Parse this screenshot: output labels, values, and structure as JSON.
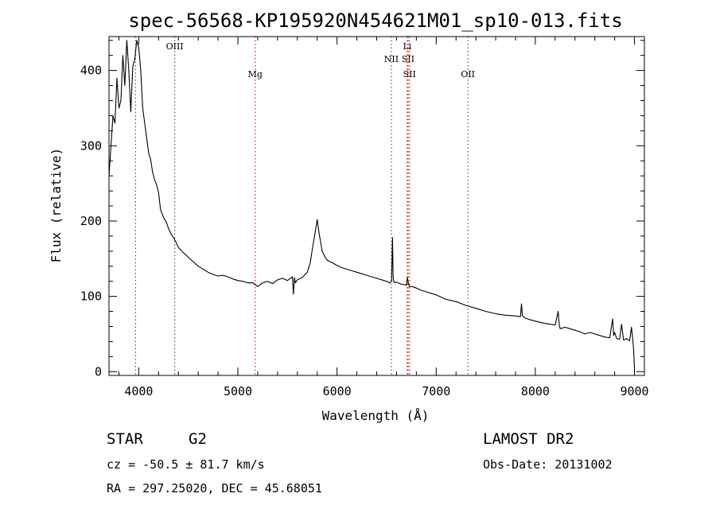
{
  "chart_data": {
    "type": "line",
    "title": "spec-56568-KP195920N454621M01_sp10-013.fits",
    "xlabel": "Wavelength (Å)",
    "ylabel": "Flux (relative)",
    "xlim": [
      3700,
      9100
    ],
    "ylim": [
      -5,
      445
    ],
    "x_ticks": [
      4000,
      5000,
      6000,
      7000,
      8000,
      9000
    ],
    "y_ticks": [
      0,
      100,
      200,
      300,
      400
    ],
    "grid": false,
    "series": [
      {
        "x": [
          3700,
          3720,
          3740,
          3760,
          3780,
          3800,
          3820,
          3840,
          3860,
          3880,
          3900,
          3920,
          3940,
          3960,
          3980,
          4000,
          4020,
          4040,
          4060,
          4080,
          4100,
          4120,
          4140,
          4160,
          4180,
          4200,
          4220,
          4250,
          4280,
          4300,
          4330,
          4360,
          4400,
          4450,
          4500,
          4550,
          4600,
          4650,
          4700,
          4750,
          4800,
          4850,
          4900,
          4950,
          5000,
          5050,
          5100,
          5150,
          5200,
          5250,
          5300,
          5350,
          5400,
          5450,
          5500,
          5550,
          5560,
          5570,
          5580,
          5600,
          5650,
          5700,
          5730,
          5760,
          5780,
          5800,
          5820,
          5850,
          5880,
          5900,
          5950,
          6000,
          6050,
          6100,
          6150,
          6200,
          6250,
          6300,
          6350,
          6400,
          6450,
          6500,
          6530,
          6550,
          6560,
          6565,
          6570,
          6580,
          6600,
          6650,
          6700,
          6710,
          6720,
          6730,
          6760,
          6800,
          6850,
          6900,
          6950,
          7000,
          7100,
          7200,
          7300,
          7400,
          7500,
          7600,
          7700,
          7800,
          7850,
          7860,
          7870,
          7900,
          8000,
          8100,
          8200,
          8230,
          8240,
          8250,
          8300,
          8350,
          8400,
          8450,
          8500,
          8550,
          8600,
          8650,
          8700,
          8750,
          8780,
          8790,
          8800,
          8820,
          8850,
          8870,
          8890,
          8920,
          8950,
          8970,
          8990,
          9000
        ],
        "y": [
          260,
          300,
          340,
          330,
          390,
          350,
          360,
          420,
          380,
          440,
          400,
          345,
          405,
          415,
          440,
          430,
          400,
          350,
          330,
          310,
          290,
          282,
          265,
          255,
          248,
          238,
          215,
          205,
          198,
          190,
          182,
          176,
          165,
          158,
          152,
          146,
          140,
          136,
          132,
          129,
          127,
          128,
          126,
          123,
          121,
          120,
          118,
          118,
          113,
          118,
          120,
          117,
          122,
          124,
          121,
          126,
          103,
          125,
          118,
          122,
          125,
          132,
          145,
          170,
          185,
          202,
          183,
          160,
          152,
          148,
          145,
          141,
          138,
          136,
          134,
          132,
          130,
          128,
          126,
          124,
          122,
          120,
          118,
          120,
          178,
          128,
          121,
          118,
          119,
          116,
          115,
          125,
          117,
          113,
          113,
          111,
          108,
          106,
          104,
          102,
          96,
          93,
          88,
          84,
          80,
          77,
          75,
          74,
          73,
          90,
          74,
          71,
          67,
          64,
          62,
          80,
          64,
          57,
          59,
          57,
          55,
          53,
          50,
          52,
          50,
          48,
          46,
          45,
          70,
          48,
          52,
          44,
          43,
          63,
          42,
          44,
          41,
          59,
          32,
          5
        ]
      }
    ],
    "annotations": [
      {
        "label": "OIII",
        "x": 4363,
        "label_row": 1,
        "color": "#555555"
      },
      {
        "label": "",
        "x": 3968,
        "label_row": 1,
        "color": "#555555"
      },
      {
        "label": "Mg",
        "x": 5175,
        "label_row": 3,
        "color": "#cc2222"
      },
      {
        "label": "NII",
        "x": 6548,
        "label_row": 2,
        "color": "#555555"
      },
      {
        "label": "Li",
        "x": 6708,
        "label_row": 1,
        "color": "#cc2222"
      },
      {
        "label": "SII",
        "x": 6717,
        "label_row": 2,
        "color": "#cc2222"
      },
      {
        "label": "SII",
        "x": 6731,
        "label_row": 3,
        "color": "#cc2222"
      },
      {
        "label": "OII",
        "x": 7320,
        "label_row": 3,
        "color": "#555555"
      }
    ]
  },
  "info": {
    "class_label": "STAR",
    "subclass_label": "G2",
    "cz_text": "cz = -50.5 ± 81.7 km/s",
    "radec_text": "RA = 297.25020, DEC =  45.68051",
    "survey_label": "LAMOST DR2",
    "obs_date_text": "Obs-Date: 20131002"
  }
}
